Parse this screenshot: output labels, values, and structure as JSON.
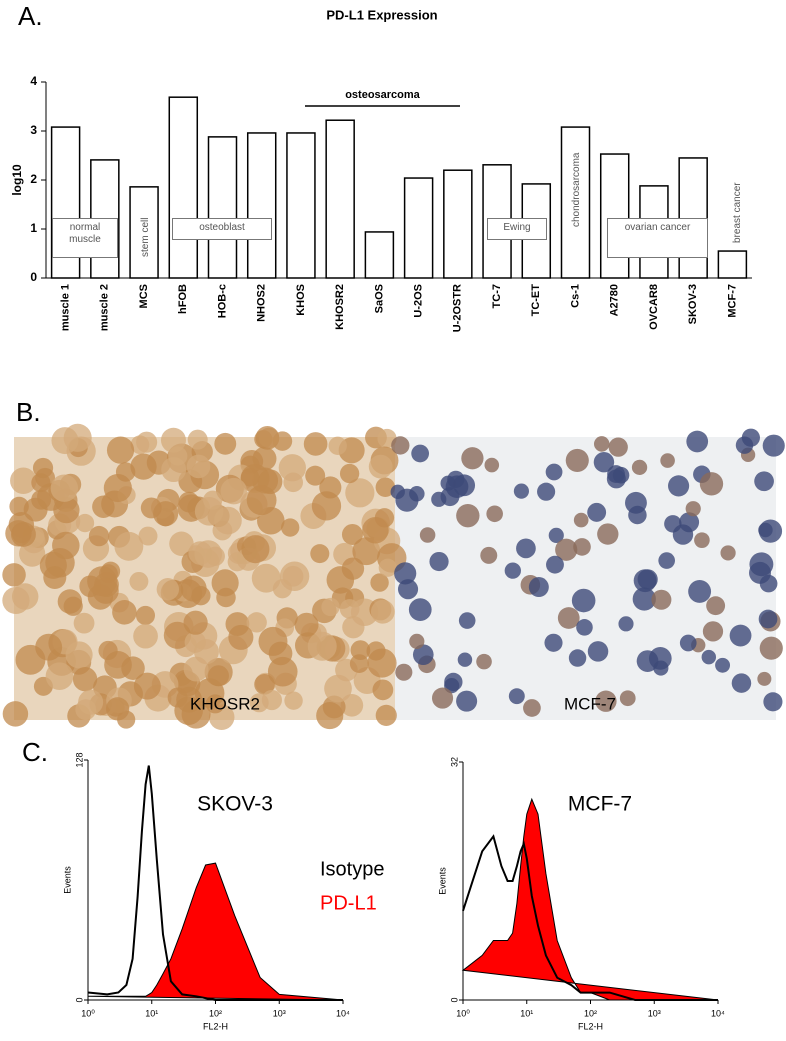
{
  "figure": {
    "panel_labels": [
      "A.",
      "B.",
      "C."
    ],
    "images": [
      {
        "label": "KHOSR2"
      },
      {
        "label": "MCF-7"
      }
    ]
  },
  "chart_data": [
    {
      "type": "bar",
      "title": "PD-L1 Expression",
      "y_label": "log10",
      "categories": [
        "muscle 1",
        "muscle 2",
        "MCS",
        "hFOB",
        "HOB-c",
        "NHOS2",
        "KHOS",
        "KHOSR2",
        "SaOS",
        "U-2OS",
        "U-2OSTR",
        "TC-7",
        "TC-ET",
        "Cs-1",
        "A2780",
        "OVCAR8",
        "SKOV-3",
        "MCF-7"
      ],
      "values": [
        3.08,
        2.41,
        1.86,
        3.69,
        2.88,
        2.96,
        2.96,
        3.22,
        0.94,
        2.04,
        2.2,
        2.31,
        1.92,
        3.08,
        2.53,
        1.88,
        2.45,
        0.55
      ],
      "color": "#ffffff",
      "ylim": [
        0,
        4
      ],
      "yticks": [
        0,
        1,
        2,
        3,
        4
      ],
      "annotations": [
        "normal muscle",
        "stem cell",
        "osteoblast",
        "osteosarcoma",
        "Ewing",
        "chondrosarcoma",
        "ovarian cancer",
        "breast cancer"
      ]
    },
    {
      "type": "histogram",
      "title": "SKOV-3",
      "x_label": "FL2-H",
      "y_label": "Events",
      "log_x": true,
      "x": [
        1,
        2,
        3,
        4,
        5,
        6,
        7,
        8,
        9,
        10,
        12,
        15,
        20,
        30,
        50,
        70,
        100,
        200,
        500,
        1000,
        10000
      ],
      "series": [
        {
          "name": "Isotype",
          "color": "#000000",
          "values": [
            4,
            3,
            4,
            8,
            22,
            55,
            90,
            115,
            125,
            110,
            75,
            35,
            10,
            3,
            2,
            1,
            0,
            0,
            0,
            0,
            0
          ]
        },
        {
          "name": "PD-L1",
          "color": "#ff0000",
          "values": [
            2,
            2,
            2,
            2,
            2,
            2,
            2,
            2,
            3,
            4,
            8,
            14,
            22,
            38,
            60,
            72,
            73,
            45,
            12,
            3,
            0
          ]
        }
      ],
      "xlim": [
        1,
        10000
      ],
      "xticks": [
        {
          "value": 1,
          "label": "10⁰"
        },
        {
          "value": 10,
          "label": "10¹"
        },
        {
          "value": 100,
          "label": "10²"
        },
        {
          "value": 1000,
          "label": "10³"
        },
        {
          "value": 10000,
          "label": "10⁴"
        }
      ],
      "ylim": [
        0,
        128
      ],
      "yticks": [
        0,
        128
      ]
    },
    {
      "type": "histogram",
      "title": "MCF-7",
      "x_label": "FL2-H",
      "y_label": "Events",
      "log_x": true,
      "x": [
        1,
        2,
        3,
        4,
        5,
        6,
        7,
        8,
        9,
        10,
        12,
        15,
        20,
        30,
        50,
        70,
        100,
        200,
        500,
        1000,
        10000
      ],
      "series": [
        {
          "color": "#000000",
          "values": [
            12,
            20,
            22,
            18,
            16,
            16,
            18,
            20,
            21,
            19,
            14,
            10,
            6,
            3,
            2,
            1,
            1,
            1,
            0,
            0,
            0
          ]
        },
        {
          "color": "#ff0000",
          "values": [
            4,
            6,
            8,
            8,
            8,
            9,
            13,
            18,
            22,
            25,
            27,
            25,
            17,
            8,
            3,
            1,
            1,
            0,
            0,
            0,
            0
          ]
        }
      ],
      "xlim": [
        1,
        10000
      ],
      "xticks": [
        {
          "value": 1,
          "label": "10⁰"
        },
        {
          "value": 10,
          "label": "10¹"
        },
        {
          "value": 100,
          "label": "10²"
        },
        {
          "value": 1000,
          "label": "10³"
        },
        {
          "value": 10000,
          "label": "10⁴"
        }
      ],
      "ylim": [
        0,
        32
      ],
      "yticks": [
        0,
        32
      ]
    }
  ]
}
